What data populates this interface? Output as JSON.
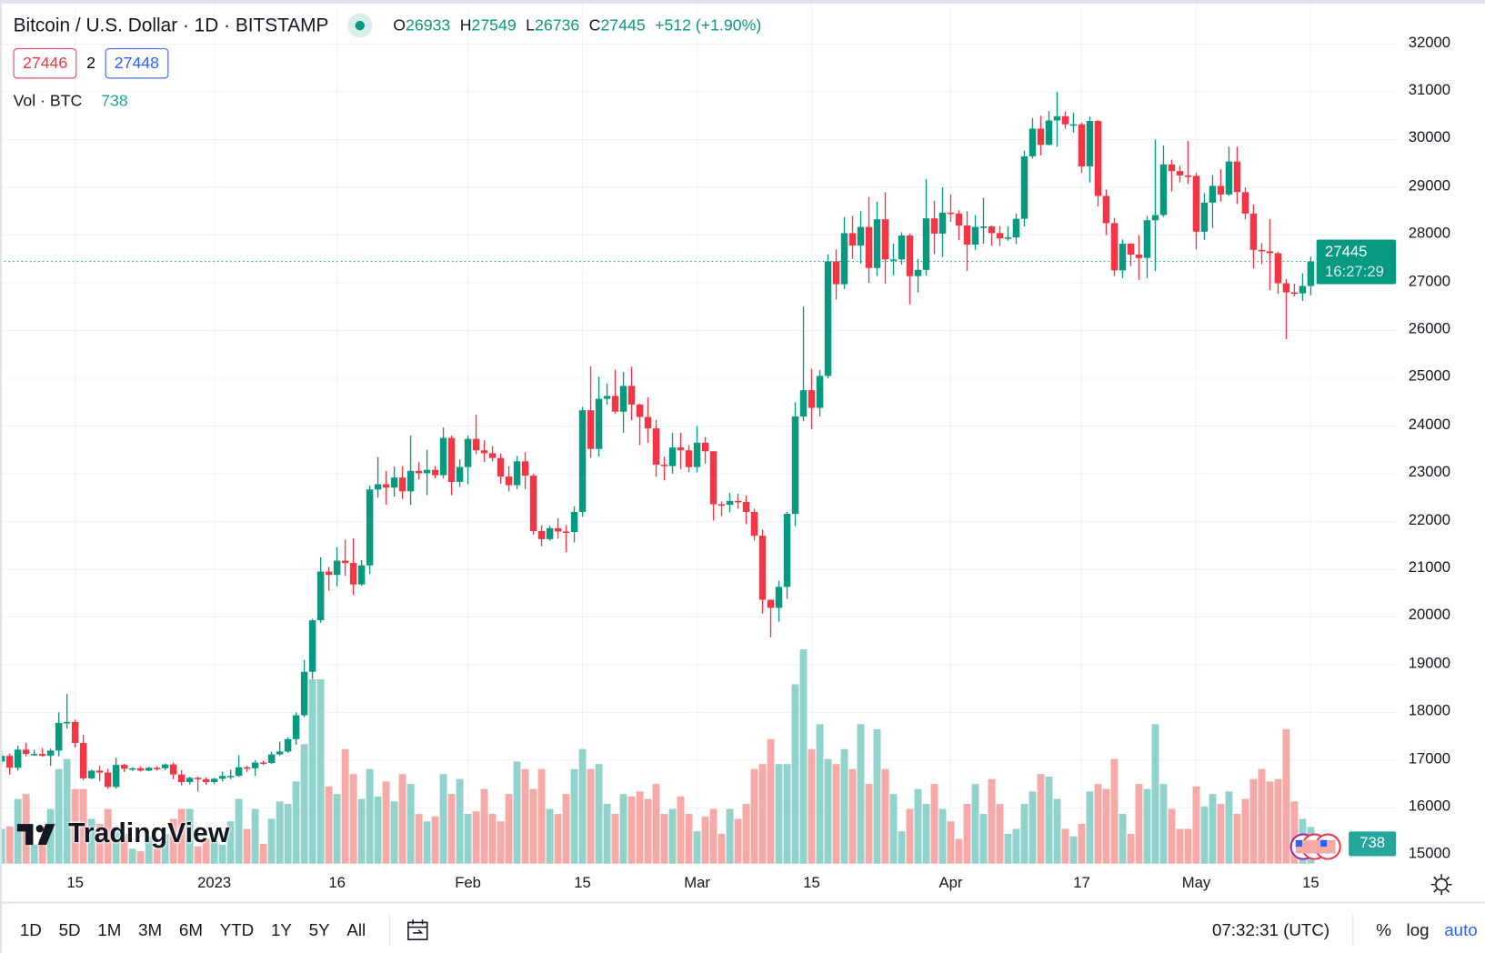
{
  "header": {
    "symbol_title": "Bitcoin / U.S. Dollar · 1D · BITSTAMP",
    "ohlc": {
      "o_label": "O",
      "o": "26933",
      "h_label": "H",
      "h": "27549",
      "l_label": "L",
      "l": "26736",
      "c_label": "C",
      "c": "27445",
      "change": "+512 (+1.90%)"
    },
    "sell_price": "27446",
    "spread": "2",
    "buy_price": "27448",
    "volume_label": "Vol · BTC",
    "volume_value": "738"
  },
  "price_axis": {
    "last_price": "27445",
    "countdown": "16:27:29",
    "volume_badge": "738"
  },
  "logo_text": "TradingView",
  "bottom_bar": {
    "ranges": [
      "1D",
      "5D",
      "1M",
      "3M",
      "6M",
      "YTD",
      "1Y",
      "5Y",
      "All"
    ],
    "time": "07:32:31 (UTC)",
    "percent": "%",
    "log": "log",
    "auto": "auto"
  },
  "colors": {
    "up": "#089981",
    "down": "#f23645",
    "vol_up": "#92d2cc",
    "vol_down": "#f7a9a7",
    "grid": "#f0f3fa",
    "accent": "#2962ff"
  },
  "chart_data": {
    "type": "candlestick",
    "title": "Bitcoin / U.S. Dollar · 1D · BITSTAMP",
    "ylim": [
      15000,
      32000
    ],
    "y_ticks": [
      "32000",
      "31000",
      "30000",
      "29000",
      "28000",
      "27000",
      "26000",
      "25000",
      "24000",
      "23000",
      "22000",
      "21000",
      "20000",
      "19000",
      "18000",
      "17000",
      "16000",
      "15000"
    ],
    "x_ticks": [
      {
        "label": "15",
        "index": 9
      },
      {
        "label": "2023",
        "index": 26
      },
      {
        "label": "16",
        "index": 41
      },
      {
        "label": "Feb",
        "index": 57
      },
      {
        "label": "15",
        "index": 71
      },
      {
        "label": "Mar",
        "index": 85
      },
      {
        "label": "15",
        "index": 99
      },
      {
        "label": "Apr",
        "index": 116
      },
      {
        "label": "17",
        "index": 132
      },
      {
        "label": "May",
        "index": 146
      },
      {
        "label": "15",
        "index": 160
      }
    ],
    "candles_ohlc": [
      [
        16970,
        17200,
        16900,
        17090
      ],
      [
        17090,
        17140,
        16690,
        16840
      ],
      [
        16840,
        17300,
        16780,
        17220
      ],
      [
        17220,
        17360,
        17080,
        17130
      ],
      [
        17130,
        17220,
        17090,
        17130
      ],
      [
        17130,
        17250,
        17070,
        17090
      ],
      [
        17090,
        17240,
        16880,
        17200
      ],
      [
        17200,
        18000,
        17080,
        17780
      ],
      [
        17780,
        18390,
        17660,
        17800
      ],
      [
        17800,
        17850,
        17270,
        17360
      ],
      [
        17360,
        17530,
        16580,
        16620
      ],
      [
        16620,
        16800,
        16600,
        16780
      ],
      [
        16780,
        16880,
        16560,
        16740
      ],
      [
        16740,
        16820,
        16400,
        16440
      ],
      [
        16440,
        17050,
        16400,
        16900
      ],
      [
        16900,
        16920,
        16750,
        16820
      ],
      [
        16820,
        16850,
        16770,
        16830
      ],
      [
        16830,
        16870,
        16760,
        16780
      ],
      [
        16780,
        16860,
        16770,
        16840
      ],
      [
        16840,
        16870,
        16780,
        16830
      ],
      [
        16830,
        16930,
        16790,
        16910
      ],
      [
        16910,
        16950,
        16600,
        16700
      ],
      [
        16700,
        16790,
        16470,
        16540
      ],
      [
        16540,
        16650,
        16490,
        16630
      ],
      [
        16630,
        16650,
        16340,
        16600
      ],
      [
        16600,
        16640,
        16480,
        16540
      ],
      [
        16540,
        16630,
        16500,
        16610
      ],
      [
        16610,
        16760,
        16550,
        16670
      ],
      [
        16670,
        16800,
        16600,
        16670
      ],
      [
        16670,
        17100,
        16650,
        16850
      ],
      [
        16850,
        16880,
        16750,
        16830
      ],
      [
        16830,
        17000,
        16670,
        16950
      ],
      [
        16950,
        16990,
        16900,
        16940
      ],
      [
        16940,
        17180,
        16920,
        17120
      ],
      [
        17120,
        17390,
        17100,
        17180
      ],
      [
        17180,
        17480,
        17150,
        17440
      ],
      [
        17440,
        18000,
        17320,
        17940
      ],
      [
        17940,
        19100,
        17900,
        18850
      ],
      [
        18850,
        19960,
        18700,
        19930
      ],
      [
        19930,
        21250,
        19880,
        20950
      ],
      [
        20950,
        21050,
        20550,
        20880
      ],
      [
        20880,
        21460,
        20640,
        21180
      ],
      [
        21180,
        21620,
        20860,
        21130
      ],
      [
        21130,
        21650,
        20460,
        20680
      ],
      [
        20680,
        21190,
        20650,
        21080
      ],
      [
        21080,
        22750,
        20900,
        22670
      ],
      [
        22670,
        23350,
        22500,
        22780
      ],
      [
        22780,
        23060,
        22350,
        22710
      ],
      [
        22710,
        23150,
        22520,
        22920
      ],
      [
        22920,
        23160,
        22470,
        22630
      ],
      [
        22630,
        23800,
        22350,
        23060
      ],
      [
        23060,
        23240,
        22880,
        23010
      ],
      [
        23010,
        23500,
        22550,
        23080
      ],
      [
        23080,
        23160,
        22900,
        22970
      ],
      [
        22970,
        23970,
        22900,
        23750
      ],
      [
        23750,
        23800,
        22550,
        22830
      ],
      [
        22830,
        23300,
        22720,
        23140
      ],
      [
        23140,
        23800,
        22780,
        23730
      ],
      [
        23730,
        24240,
        23410,
        23490
      ],
      [
        23490,
        23700,
        23250,
        23430
      ],
      [
        23430,
        23580,
        23260,
        23330
      ],
      [
        23330,
        23430,
        22790,
        22940
      ],
      [
        22940,
        23160,
        22630,
        22760
      ],
      [
        22760,
        23370,
        22680,
        23260
      ],
      [
        23260,
        23450,
        22680,
        22960
      ],
      [
        22960,
        23000,
        21720,
        21800
      ],
      [
        21800,
        21920,
        21480,
        21630
      ],
      [
        21630,
        21910,
        21600,
        21860
      ],
      [
        21860,
        22070,
        21640,
        21790
      ],
      [
        21790,
        21920,
        21360,
        21780
      ],
      [
        21780,
        22320,
        21560,
        22200
      ],
      [
        22200,
        24400,
        22100,
        24330
      ],
      [
        24330,
        25250,
        23330,
        23520
      ],
      [
        23520,
        25030,
        23360,
        24570
      ],
      [
        24570,
        24890,
        24450,
        24630
      ],
      [
        24630,
        25180,
        24260,
        24300
      ],
      [
        24300,
        25130,
        23860,
        24840
      ],
      [
        24840,
        25240,
        24120,
        24450
      ],
      [
        24450,
        24470,
        23600,
        24190
      ],
      [
        24190,
        24600,
        23650,
        23950
      ],
      [
        23950,
        24130,
        22940,
        23190
      ],
      [
        23190,
        23360,
        22860,
        23160
      ],
      [
        23160,
        23860,
        23000,
        23550
      ],
      [
        23550,
        23860,
        23100,
        23490
      ],
      [
        23490,
        23600,
        23030,
        23140
      ],
      [
        23140,
        24000,
        23030,
        23650
      ],
      [
        23650,
        23770,
        23210,
        23470
      ],
      [
        23470,
        23470,
        22020,
        22360
      ],
      [
        22360,
        22420,
        22110,
        22350
      ],
      [
        22350,
        22600,
        22190,
        22430
      ],
      [
        22430,
        22580,
        22270,
        22410
      ],
      [
        22410,
        22540,
        21940,
        22200
      ],
      [
        22200,
        22270,
        21600,
        21700
      ],
      [
        21700,
        21830,
        20070,
        20360
      ],
      [
        20360,
        20360,
        19570,
        20190
      ],
      [
        20190,
        20760,
        19900,
        20630
      ],
      [
        20630,
        22200,
        20380,
        22160
      ],
      [
        22160,
        24500,
        21900,
        24200
      ],
      [
        24200,
        26500,
        24100,
        24750
      ],
      [
        24750,
        25200,
        23930,
        24380
      ],
      [
        24380,
        25170,
        24200,
        25050
      ],
      [
        25050,
        27600,
        25000,
        27450
      ],
      [
        27450,
        27700,
        26650,
        26970
      ],
      [
        26970,
        28380,
        26870,
        28040
      ],
      [
        28040,
        28400,
        27500,
        27780
      ],
      [
        27780,
        28500,
        27400,
        28170
      ],
      [
        28170,
        28800,
        27000,
        27310
      ],
      [
        27310,
        28700,
        27140,
        28330
      ],
      [
        28330,
        28900,
        26980,
        27490
      ],
      [
        27490,
        27820,
        27160,
        27490
      ],
      [
        27490,
        28060,
        27380,
        27990
      ],
      [
        27990,
        28030,
        26550,
        27140
      ],
      [
        27140,
        27500,
        26800,
        27270
      ],
      [
        27270,
        29170,
        27150,
        28350
      ],
      [
        28350,
        28720,
        27600,
        28030
      ],
      [
        28030,
        29000,
        27540,
        28470
      ],
      [
        28470,
        28850,
        28280,
        28450
      ],
      [
        28450,
        28520,
        27890,
        28200
      ],
      [
        28200,
        28500,
        27250,
        27800
      ],
      [
        27800,
        28420,
        27690,
        28170
      ],
      [
        28170,
        28780,
        27820,
        28180
      ],
      [
        28180,
        28200,
        27780,
        28040
      ],
      [
        28040,
        28190,
        27770,
        27930
      ],
      [
        27930,
        28180,
        27880,
        27950
      ],
      [
        27950,
        28450,
        27810,
        28340
      ],
      [
        28340,
        29770,
        28180,
        29650
      ],
      [
        29650,
        30450,
        29600,
        30230
      ],
      [
        30230,
        30500,
        29670,
        29890
      ],
      [
        29890,
        30600,
        29880,
        30400
      ],
      [
        30400,
        31000,
        29850,
        30490
      ],
      [
        30490,
        30590,
        30230,
        30320
      ],
      [
        30320,
        30560,
        30150,
        30320
      ],
      [
        30320,
        30360,
        29300,
        29440
      ],
      [
        29440,
        30480,
        29100,
        30390
      ],
      [
        30390,
        30410,
        28600,
        28820
      ],
      [
        28820,
        28950,
        28000,
        28250
      ],
      [
        28250,
        28360,
        27140,
        27260
      ],
      [
        27260,
        27910,
        27100,
        27820
      ],
      [
        27820,
        27830,
        27350,
        27590
      ],
      [
        27590,
        28000,
        27060,
        27520
      ],
      [
        27520,
        28400,
        27100,
        28310
      ],
      [
        28310,
        30000,
        27250,
        28420
      ],
      [
        28420,
        29880,
        28380,
        29480
      ],
      [
        29480,
        29580,
        28910,
        29340
      ],
      [
        29340,
        29450,
        29100,
        29250
      ],
      [
        29250,
        29970,
        29070,
        29240
      ],
      [
        29240,
        29300,
        27700,
        28070
      ],
      [
        28070,
        28880,
        27900,
        28680
      ],
      [
        28680,
        29260,
        28150,
        29030
      ],
      [
        29030,
        29380,
        28700,
        28850
      ],
      [
        28850,
        29850,
        28820,
        29540
      ],
      [
        29540,
        29850,
        28650,
        28900
      ],
      [
        28900,
        29000,
        28330,
        28450
      ],
      [
        28450,
        28640,
        27300,
        27690
      ],
      [
        27690,
        27830,
        27390,
        27660
      ],
      [
        27660,
        28330,
        26850,
        27620
      ],
      [
        27620,
        27650,
        26770,
        26990
      ],
      [
        26990,
        27080,
        25820,
        26800
      ],
      [
        26800,
        26980,
        26720,
        26780
      ],
      [
        26780,
        27200,
        26620,
        26933
      ],
      [
        26933,
        27549,
        26736,
        27445
      ]
    ],
    "volume_btc": [
      700,
      750,
      1300,
      1400,
      380,
      500,
      1100,
      1900,
      2100,
      1500,
      1500,
      900,
      800,
      1100,
      700,
      600,
      300,
      250,
      550,
      300,
      600,
      900,
      1100,
      1100,
      350,
      500,
      450,
      380,
      850,
      1300,
      700,
      1100,
      400,
      900,
      1250,
      1200,
      1650,
      2400,
      3700,
      3700,
      1550,
      1400,
      2300,
      1800,
      1300,
      1900,
      1350,
      1650,
      1250,
      1800,
      1600,
      1000,
      850,
      950,
      1800,
      1400,
      1700,
      1000,
      1050,
      1500,
      1000,
      850,
      1400,
      2050,
      1900,
      1500,
      1900,
      1100,
      1000,
      1400,
      1900,
      2300,
      1900,
      2000,
      1200,
      1000,
      1400,
      1350,
      1450,
      1300,
      1600,
      1000,
      1100,
      1350,
      1000,
      650,
      950,
      1100,
      600,
      1100,
      900,
      1200,
      1900,
      2000,
      2500,
      2000,
      2000,
      3600,
      4300,
      2300,
      2800,
      2100,
      2000,
      2300,
      1900,
      2800,
      1600,
      2700,
      1900,
      1400,
      650,
      1100,
      1500,
      1200,
      1600,
      1100,
      850,
      500,
      1200,
      1600,
      1000,
      1700,
      1200,
      600,
      700,
      1200,
      1450,
      1800,
      1750,
      1300,
      700,
      550,
      800,
      1450,
      1600,
      1500,
      2100,
      1000,
      600,
      1600,
      1500,
      2800,
      1600,
      1100,
      700,
      700,
      1550,
      1150,
      1400,
      1200,
      1450,
      1000,
      1300,
      1700,
      1900,
      1650,
      1700,
      2700,
      1250,
      900,
      738
    ],
    "last_price": 27445
  }
}
